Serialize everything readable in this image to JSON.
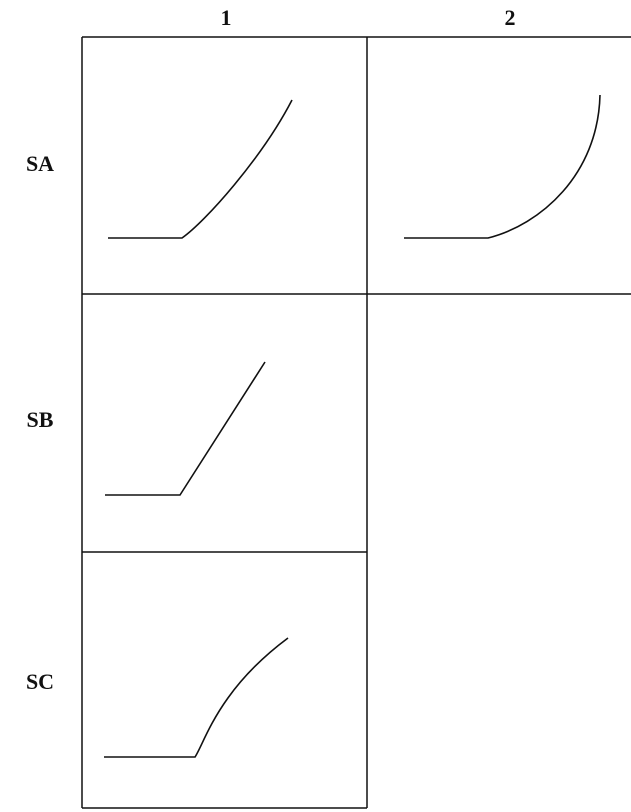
{
  "columns": [
    "1",
    "2"
  ],
  "rows": [
    "SA",
    "SB",
    "SC"
  ]
}
